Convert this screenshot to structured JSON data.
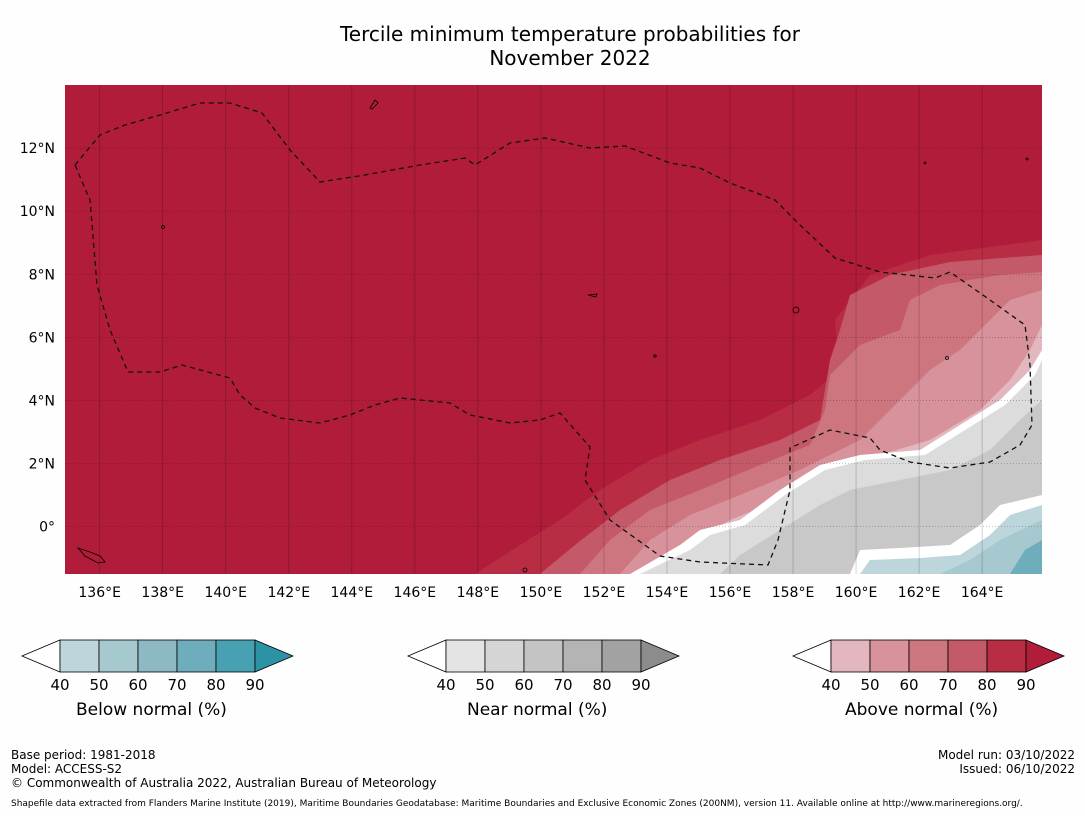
{
  "title": {
    "line1": "Tercile minimum temperature probabilities for",
    "line2": "November 2022"
  },
  "map": {
    "lon_labels": [
      "136°E",
      "138°E",
      "140°E",
      "142°E",
      "144°E",
      "146°E",
      "148°E",
      "150°E",
      "152°E",
      "154°E",
      "156°E",
      "158°E",
      "160°E",
      "162°E",
      "164°E"
    ],
    "lon_values": [
      136,
      138,
      140,
      142,
      144,
      146,
      148,
      150,
      152,
      154,
      156,
      158,
      160,
      162,
      164
    ],
    "lat_labels": [
      "12°N",
      "10°N",
      "8°N",
      "6°N",
      "4°N",
      "2°N",
      "0°"
    ],
    "lat_values": [
      12,
      10,
      8,
      6,
      4,
      2,
      0
    ],
    "lon_range": [
      134.9,
      165.9
    ],
    "lat_range": [
      -1.5,
      14
    ],
    "dominant_category": "Above normal",
    "dominant_probability_bin": "80-90"
  },
  "legends": [
    {
      "label": "Below normal (%)",
      "ticks": [
        "40",
        "50",
        "60",
        "70",
        "80",
        "90"
      ],
      "colors": [
        "#ffffff",
        "#bdd6dc",
        "#a6c8cf",
        "#8db9c3",
        "#6eadbb",
        "#48a1b2",
        "#2c93a6"
      ]
    },
    {
      "label": "Near normal (%)",
      "ticks": [
        "40",
        "50",
        "60",
        "70",
        "80",
        "90"
      ],
      "colors": [
        "#ffffff",
        "#e4e4e4",
        "#d5d5d5",
        "#c4c4c4",
        "#b4b4b4",
        "#a2a2a2",
        "#8c8c8c"
      ]
    },
    {
      "label": "Above normal (%)",
      "ticks": [
        "40",
        "50",
        "60",
        "70",
        "80",
        "90"
      ],
      "colors": [
        "#ffffff",
        "#e2b7bf",
        "#d8929c",
        "#cd7680",
        "#c45a69",
        "#b82d44",
        "#b01c3a"
      ]
    }
  ],
  "footer": {
    "base_period": "Base period: 1981-2018",
    "model": "Model: ACCESS-S2",
    "copyright": "© Commonwealth of Australia 2022, Australian Bureau of Meteorology",
    "model_run": "Model run: 03/10/2022",
    "issued": "Issued: 06/10/2022",
    "shapefile_note": "Shapefile data extracted from Flanders Marine Institute (2019), Maritime Boundaries Geodatabase: Maritime Boundaries and Exclusive Economic Zones (200NM), version 11. Available online at http://www.marineregions.org/."
  },
  "colors": {
    "above_90": "#b01c3a"
  }
}
